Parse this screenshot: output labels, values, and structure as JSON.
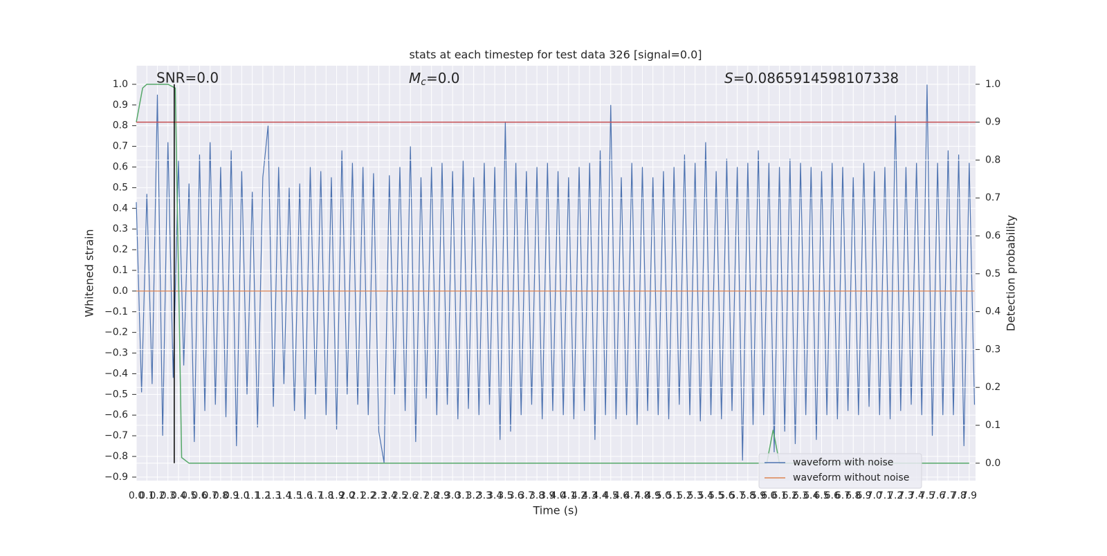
{
  "chart_data": {
    "type": "line",
    "title": "stats at each timestep for test data 326 [signal=0.0]",
    "xlabel": "Time (s)",
    "ylabel": "Whitened strain",
    "y2label": "Detection probability",
    "annotations": [
      {
        "text": "SNR=0.0"
      },
      {
        "symbol": "M",
        "subscript": "c",
        "text": "=0.0"
      },
      {
        "symbol": "S",
        "text": "=0.0865914598107338"
      }
    ],
    "xlim": [
      0,
      7.96
    ],
    "ylim": [
      -0.917,
      1.09
    ],
    "y2lim": [
      -0.046,
      1.049
    ],
    "xticks": [
      {
        "value": 0,
        "label": "0.0"
      },
      0.1,
      0.2,
      0.3,
      0.4,
      0.5,
      0.6,
      0.7,
      0.8,
      0.9,
      {
        "value": 1,
        "label": "1.0"
      },
      1.1,
      1.2,
      1.3,
      1.4,
      1.5,
      1.6,
      1.7,
      1.8,
      1.9,
      {
        "value": 2,
        "label": "2.0"
      },
      2.1,
      2.2,
      2.3,
      2.4,
      2.5,
      2.6,
      2.7,
      2.8,
      2.9,
      {
        "value": 3,
        "label": "3.0"
      },
      3.1,
      3.2,
      3.3,
      3.4,
      3.5,
      3.6,
      3.7,
      3.8,
      3.9,
      {
        "value": 4,
        "label": "4.0"
      },
      4.1,
      4.2,
      4.3,
      4.4,
      4.5,
      4.6,
      4.7,
      4.8,
      4.9,
      {
        "value": 5,
        "label": "5.0"
      },
      5.1,
      5.2,
      5.3,
      5.4,
      5.5,
      5.6,
      5.7,
      5.8,
      5.9,
      {
        "value": 6,
        "label": "6.0"
      },
      6.1,
      6.2,
      6.3,
      6.4,
      6.5,
      6.6,
      6.7,
      6.8,
      6.9,
      {
        "value": 7,
        "label": "7.0"
      },
      7.1,
      7.2,
      7.3,
      7.4,
      7.5,
      7.6,
      7.7,
      7.8,
      7.9
    ],
    "yticks": [
      {
        "value": -0.9,
        "label": "−0.9"
      },
      {
        "value": -0.8,
        "label": "−0.8"
      },
      {
        "value": -0.7,
        "label": "−0.7"
      },
      {
        "value": -0.6,
        "label": "−0.6"
      },
      {
        "value": -0.5,
        "label": "−0.5"
      },
      {
        "value": -0.4,
        "label": "−0.4"
      },
      {
        "value": -0.3,
        "label": "−0.3"
      },
      {
        "value": -0.2,
        "label": "−0.2"
      },
      {
        "value": -0.1,
        "label": "−0.1"
      },
      {
        "value": 0,
        "label": "0.0"
      },
      0.1,
      0.2,
      0.3,
      0.4,
      0.5,
      0.6,
      0.7,
      0.8,
      0.9,
      {
        "value": 1,
        "label": "1.0"
      }
    ],
    "y2ticks": [
      {
        "value": 0,
        "label": "0.0"
      },
      0.1,
      0.2,
      0.3,
      0.4,
      0.5,
      0.6,
      0.7,
      0.8,
      0.9,
      {
        "value": 1,
        "label": "1.0"
      }
    ],
    "grid": true,
    "legend": "lower right",
    "series": [
      {
        "name": "waveform with noise",
        "color": "#4c72b0",
        "x": [
          0,
          0.05,
          0.1,
          0.15,
          0.2,
          0.25,
          0.3,
          0.35,
          0.4,
          0.45,
          0.5,
          0.55,
          0.6,
          0.65,
          0.7,
          0.75,
          0.8,
          0.85,
          0.9,
          0.95,
          1,
          1.05,
          1.1,
          1.15,
          1.2,
          1.25,
          1.3,
          1.35,
          1.4,
          1.45,
          1.5,
          1.55,
          1.6,
          1.65,
          1.7,
          1.75,
          1.8,
          1.85,
          1.9,
          1.95,
          2,
          2.05,
          2.1,
          2.15,
          2.2,
          2.25,
          2.3,
          2.35,
          2.4,
          2.45,
          2.5,
          2.55,
          2.6,
          2.65,
          2.7,
          2.75,
          2.8,
          2.85,
          2.9,
          2.95,
          3,
          3.05,
          3.1,
          3.15,
          3.2,
          3.25,
          3.3,
          3.35,
          3.4,
          3.45,
          3.5,
          3.55,
          3.6,
          3.65,
          3.7,
          3.75,
          3.8,
          3.85,
          3.9,
          3.95,
          4,
          4.05,
          4.1,
          4.15,
          4.2,
          4.25,
          4.3,
          4.35,
          4.4,
          4.45,
          4.5,
          4.55,
          4.6,
          4.65,
          4.7,
          4.75,
          4.8,
          4.85,
          4.9,
          4.95,
          5,
          5.05,
          5.1,
          5.15,
          5.2,
          5.25,
          5.3,
          5.35,
          5.4,
          5.45,
          5.5,
          5.55,
          5.6,
          5.65,
          5.7,
          5.75,
          5.8,
          5.85,
          5.9,
          5.95,
          6,
          6.05,
          6.1,
          6.15,
          6.2,
          6.25,
          6.3,
          6.35,
          6.4,
          6.45,
          6.5,
          6.55,
          6.6,
          6.65,
          6.7,
          6.75,
          6.8,
          6.85,
          6.9,
          6.95,
          7,
          7.05,
          7.1,
          7.15,
          7.2,
          7.25,
          7.3,
          7.35,
          7.4,
          7.45,
          7.5,
          7.55,
          7.6,
          7.65,
          7.7,
          7.75,
          7.8,
          7.85,
          7.9,
          7.95
        ],
        "values": [
          0.43,
          -0.49,
          0.47,
          -0.45,
          0.95,
          -0.7,
          0.72,
          -0.42,
          0.63,
          -0.36,
          0.52,
          -0.73,
          0.66,
          -0.58,
          0.72,
          -0.55,
          0.6,
          -0.61,
          0.68,
          -0.75,
          0.58,
          -0.5,
          0.48,
          -0.66,
          0.55,
          0.8,
          -0.56,
          0.6,
          -0.45,
          0.5,
          -0.58,
          0.52,
          -0.62,
          0.6,
          -0.5,
          0.58,
          -0.6,
          0.55,
          -0.67,
          0.68,
          -0.5,
          0.62,
          -0.55,
          0.6,
          -0.6,
          0.57,
          -0.68,
          -0.83,
          0.56,
          -0.5,
          0.6,
          -0.58,
          0.7,
          -0.73,
          0.55,
          -0.52,
          0.6,
          -0.6,
          0.62,
          -0.55,
          0.58,
          -0.62,
          0.63,
          -0.57,
          0.55,
          -0.6,
          0.62,
          -0.55,
          0.6,
          -0.72,
          0.82,
          -0.68,
          0.62,
          -0.6,
          0.58,
          -0.55,
          0.6,
          -0.62,
          0.62,
          -0.58,
          0.58,
          -0.6,
          0.55,
          -0.62,
          0.6,
          -0.58,
          0.62,
          -0.72,
          0.68,
          -0.6,
          0.9,
          -0.62,
          0.55,
          -0.6,
          0.62,
          -0.65,
          0.6,
          -0.58,
          0.55,
          -0.6,
          0.58,
          -0.62,
          0.6,
          -0.55,
          0.66,
          -0.6,
          0.62,
          -0.63,
          0.72,
          -0.6,
          0.58,
          -0.62,
          0.64,
          -0.58,
          0.6,
          -0.82,
          0.62,
          -0.65,
          0.68,
          -0.6,
          0.62,
          -0.78,
          0.6,
          -0.68,
          0.64,
          -0.74,
          0.62,
          -0.6,
          0.6,
          -0.72,
          0.58,
          -0.6,
          0.62,
          -0.62,
          0.6,
          -0.58,
          0.55,
          -0.6,
          0.62,
          -0.56,
          0.58,
          -0.6,
          0.6,
          -0.62,
          0.85,
          -0.58,
          0.6,
          -0.55,
          0.62,
          -0.6,
          1.0,
          -0.7,
          0.62,
          -0.6,
          0.68,
          -0.6,
          0.66,
          -0.75,
          0.62,
          -0.55
        ]
      },
      {
        "name": "waveform without noise",
        "color": "#dd8452",
        "x": [
          0,
          7.95
        ],
        "values": [
          0,
          0
        ]
      },
      {
        "color": "#55a868",
        "axis": "y2",
        "x": [
          0,
          0.06,
          0.1,
          0.2,
          0.3,
          0.37,
          0.43,
          0.5,
          5.98,
          6.04,
          6.1,
          7.9
        ],
        "values": [
          0.9,
          0.99,
          1.0,
          1.0,
          1.0,
          0.99,
          0.015,
          0,
          0,
          0.088,
          0,
          0
        ]
      }
    ],
    "threshold": {
      "axis": "y2",
      "value": 0.9,
      "color": "#c44e52"
    },
    "marker_line": {
      "x": 0.36,
      "axis": "y2",
      "range": [
        0,
        1
      ],
      "color": "#000000"
    }
  }
}
